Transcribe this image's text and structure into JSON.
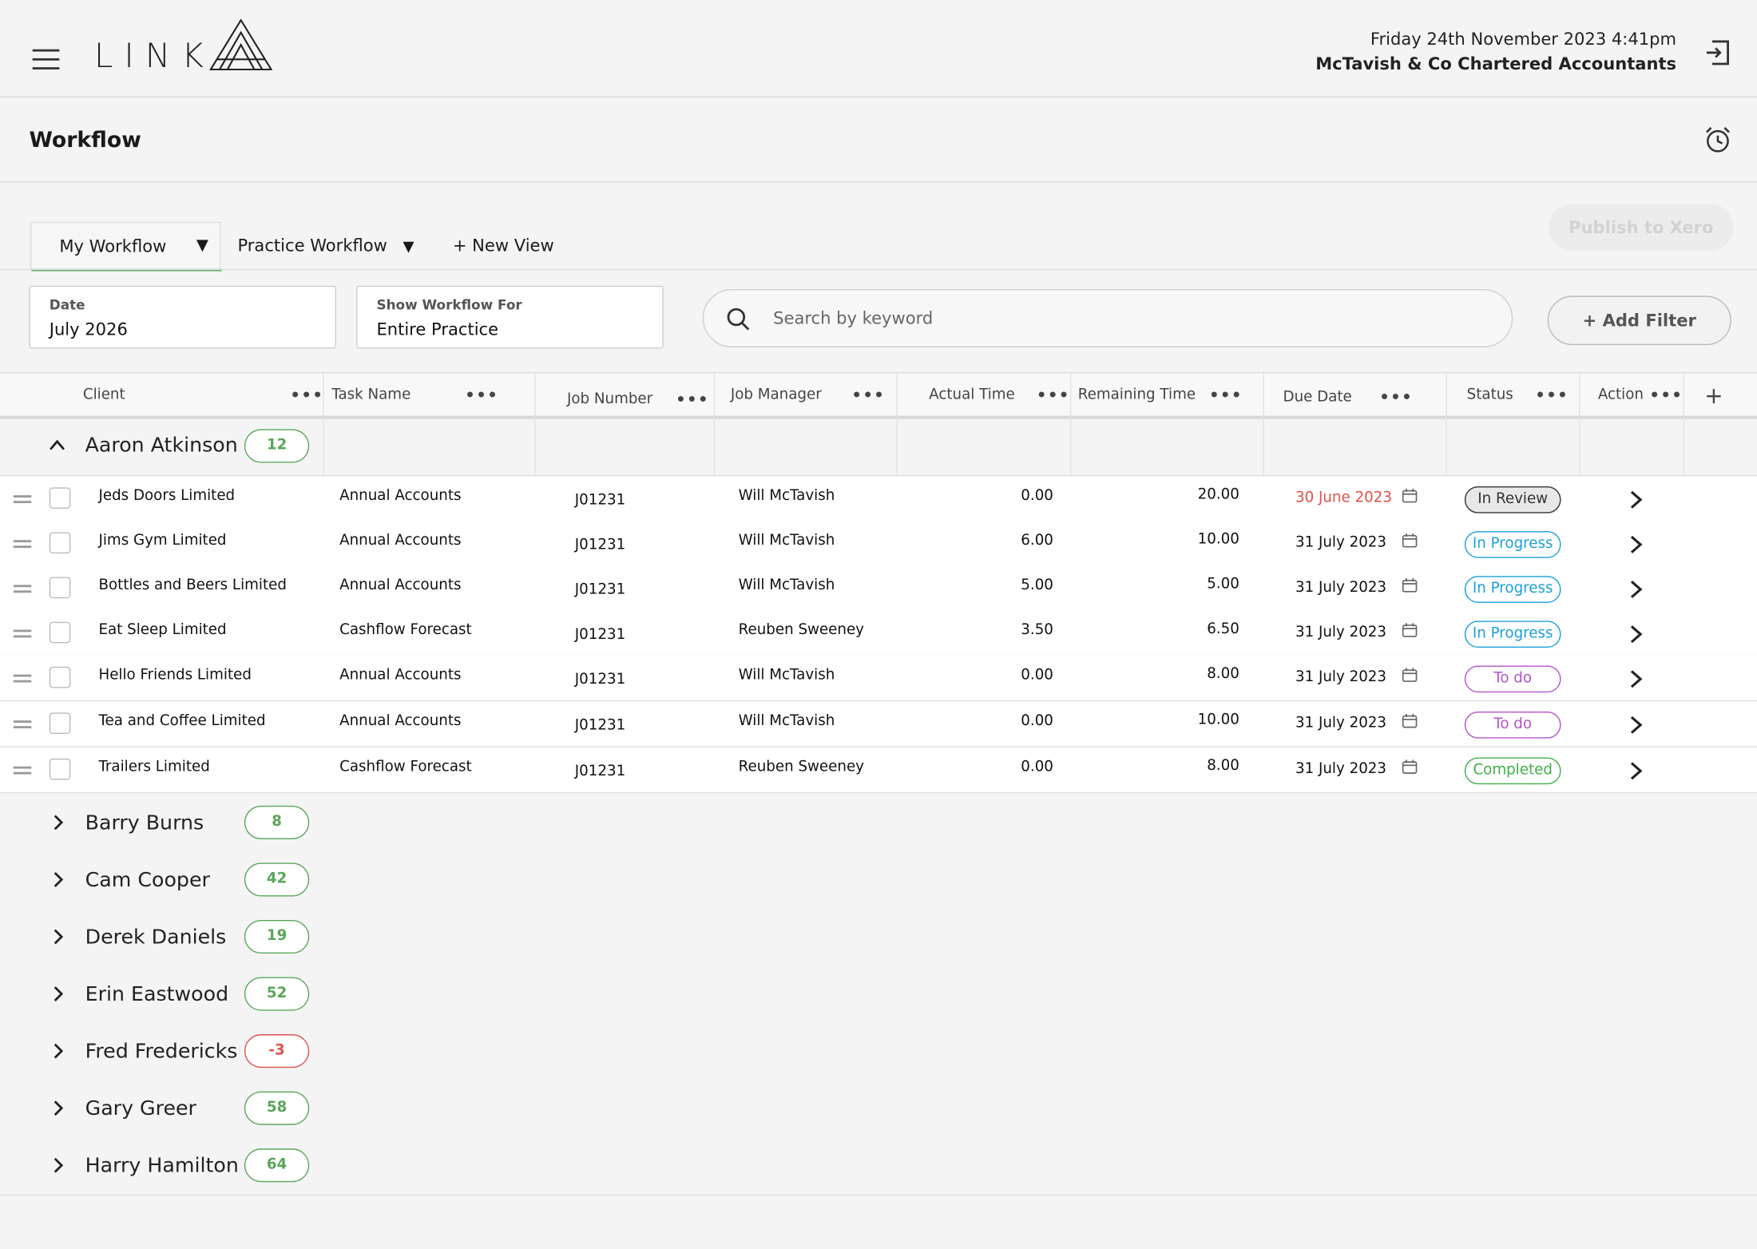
{
  "header": {
    "logo_text": "LINK",
    "datetime": "Friday 24th November 2023  4:41pm",
    "firm": "McTavish & Co Chartered Accountants"
  },
  "page": {
    "title": "Workflow"
  },
  "tabs": {
    "my": "My Workflow",
    "practice": "Practice Workflow",
    "new_view": "+ New View",
    "publish": "Publish to Xero"
  },
  "filters": {
    "date_label": "Date",
    "date_value": "July 2026",
    "show_label": "Show Workflow For",
    "show_value": "Entire Practice",
    "search_placeholder": "Search by keyword",
    "add_filter": "+ Add Filter"
  },
  "columns": {
    "client": "Client",
    "task": "Task Name",
    "job_number": "Job Number",
    "job_manager": "Job Manager",
    "actual_time": "Actual Time",
    "remaining_time": "Remaining Time",
    "due_date": "Due Date",
    "status": "Status",
    "action": "Action",
    "add": "+"
  },
  "expanded_group": {
    "name": "Aaron Atkinson",
    "count": "12"
  },
  "rows": [
    {
      "client": "Jeds Doors Limited",
      "task": "Annual Accounts",
      "job": "J01231",
      "manager": "Will McTavish",
      "actual": "0.00",
      "remaining": "20.00",
      "due": "30 June 2023",
      "overdue": true,
      "status": "In Review",
      "status_kind": "review"
    },
    {
      "client": "Jims Gym Limited",
      "task": "Annual Accounts",
      "job": "J01231",
      "manager": "Will McTavish",
      "actual": "6.00",
      "remaining": "10.00",
      "due": "31 July 2023",
      "overdue": false,
      "status": "In Progress",
      "status_kind": "progress"
    },
    {
      "client": "Bottles and Beers Limited",
      "task": "Annual Accounts",
      "job": "J01231",
      "manager": "Will McTavish",
      "actual": "5.00",
      "remaining": "5.00",
      "due": "31 July 2023",
      "overdue": false,
      "status": "In Progress",
      "status_kind": "progress"
    },
    {
      "client": "Eat Sleep Limited",
      "task": "Cashflow Forecast",
      "job": "J01231",
      "manager": "Reuben Sweeney",
      "actual": "3.50",
      "remaining": "6.50",
      "due": "31 July 2023",
      "overdue": false,
      "status": "In Progress",
      "status_kind": "progress"
    },
    {
      "client": "Hello Friends Limited",
      "task": "Annual Accounts",
      "job": "J01231",
      "manager": "Will McTavish",
      "actual": "0.00",
      "remaining": "8.00",
      "due": "31 July 2023",
      "overdue": false,
      "status": "To do",
      "status_kind": "todo"
    },
    {
      "client": "Tea and Coffee Limited",
      "task": "Annual Accounts",
      "job": "J01231",
      "manager": "Will McTavish",
      "actual": "0.00",
      "remaining": "10.00",
      "due": "31 July 2023",
      "overdue": false,
      "status": "To do",
      "status_kind": "todo"
    },
    {
      "client": "Trailers Limited",
      "task": "Cashflow Forecast",
      "job": "J01231",
      "manager": "Reuben Sweeney",
      "actual": "0.00",
      "remaining": "8.00",
      "due": "31 July 2023",
      "overdue": false,
      "status": "Completed",
      "status_kind": "done"
    }
  ],
  "groups": [
    {
      "name": "Barry Burns",
      "count": "8",
      "negative": false
    },
    {
      "name": "Cam Cooper",
      "count": "42",
      "negative": false
    },
    {
      "name": "Derek Daniels",
      "count": "19",
      "negative": false
    },
    {
      "name": "Erin Eastwood",
      "count": "52",
      "negative": false
    },
    {
      "name": "Fred Fredericks",
      "count": "-3",
      "negative": true
    },
    {
      "name": "Gary Greer",
      "count": "58",
      "negative": false
    },
    {
      "name": "Harry Hamilton",
      "count": "64",
      "negative": false
    }
  ],
  "colors": {
    "accent_green": "#5aa65a",
    "overdue_red": "#e0524b",
    "in_progress_blue": "#1aa0d8",
    "todo_purple": "#b453c8",
    "completed_green": "#3fb04a"
  }
}
